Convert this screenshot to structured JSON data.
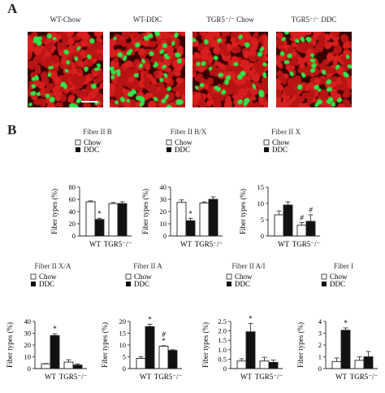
{
  "panel_a": {
    "letter": "A",
    "images": [
      {
        "label": "WT-Chow",
        "green_density": 0.55
      },
      {
        "label": "WT-DDC",
        "green_density": 0.9
      },
      {
        "label": "TGR5⁻/⁻ Chow",
        "green_density": 0.45
      },
      {
        "label": "TGR5⁻/⁻ DDC",
        "green_density": 0.5
      }
    ],
    "colors": {
      "red": "#d81e1e",
      "green": "#2ee84a",
      "background": "#3a0000"
    }
  },
  "panel_b": {
    "letter": "B"
  },
  "legend": {
    "chow": "Chow",
    "ddc": "DDC"
  },
  "colors": {
    "chow": "#ffffff",
    "ddc": "#111111",
    "stroke": "#222222"
  },
  "chart_data": [
    {
      "type": "bar",
      "title": "Fiber II B",
      "ylabel": "Fiber types (%)",
      "categories": [
        "WT",
        "TGR5⁻/⁻"
      ],
      "series": [
        {
          "name": "Chow",
          "values": [
            56,
            53
          ],
          "errors": [
            1.5,
            2
          ]
        },
        {
          "name": "DDC",
          "values": [
            27,
            53
          ],
          "errors": [
            2,
            3
          ]
        }
      ],
      "annotations": [
        {
          "category": 0,
          "series": 1,
          "text": "*"
        }
      ],
      "ylim": [
        0,
        80
      ],
      "yticks": [
        0,
        20,
        40,
        60,
        80
      ]
    },
    {
      "type": "bar",
      "title": "Fiber II B/X",
      "ylabel": "Fiber types (%)",
      "categories": [
        "WT",
        "TGR5⁻/⁻"
      ],
      "series": [
        {
          "name": "Chow",
          "values": [
            27.5,
            27
          ],
          "errors": [
            2,
            1
          ]
        },
        {
          "name": "DDC",
          "values": [
            12.5,
            30
          ],
          "errors": [
            2,
            2
          ]
        }
      ],
      "annotations": [
        {
          "category": 0,
          "series": 1,
          "text": "*"
        }
      ],
      "ylim": [
        0,
        40
      ],
      "yticks": [
        0,
        10,
        20,
        30,
        40
      ]
    },
    {
      "type": "bar",
      "title": "Fiber II X",
      "ylabel": "Fiber types (%)",
      "categories": [
        "WT",
        "TGR5⁻/⁻"
      ],
      "series": [
        {
          "name": "Chow",
          "values": [
            6.5,
            3.3
          ],
          "errors": [
            1.2,
            0.8
          ]
        },
        {
          "name": "DDC",
          "values": [
            9.5,
            4.5
          ],
          "errors": [
            1,
            2
          ]
        }
      ],
      "annotations": [
        {
          "category": 1,
          "series": 0,
          "text": "#"
        },
        {
          "category": 1,
          "series": 1,
          "text": "#"
        }
      ],
      "ylim": [
        0,
        15
      ],
      "yticks": [
        0,
        5,
        10,
        15
      ]
    },
    {
      "type": "bar",
      "title": "Fiber II X/A",
      "ylabel": "Fiber types (%)",
      "categories": [
        "WT",
        "TGR5⁻/⁻"
      ],
      "series": [
        {
          "name": "Chow",
          "values": [
            4,
            5.5
          ],
          "errors": [
            0.3,
            2
          ]
        },
        {
          "name": "DDC",
          "values": [
            28,
            3
          ],
          "errors": [
            1.5,
            1
          ]
        }
      ],
      "annotations": [
        {
          "category": 0,
          "series": 1,
          "text": "*"
        }
      ],
      "ylim": [
        0,
        40
      ],
      "yticks": [
        0,
        10,
        20,
        30,
        40
      ]
    },
    {
      "type": "bar",
      "title": "Fiber II A",
      "ylabel": "Fiber types (%)",
      "categories": [
        "WT",
        "TGR5⁻/⁻"
      ],
      "series": [
        {
          "name": "Chow",
          "values": [
            4.3,
            9.5
          ],
          "errors": [
            0.7,
            0.2
          ]
        },
        {
          "name": "DDC",
          "values": [
            17.8,
            7.7
          ],
          "errors": [
            1,
            0.3
          ]
        }
      ],
      "annotations": [
        {
          "category": 0,
          "series": 1,
          "text": "*"
        },
        {
          "category": 1,
          "series": 0,
          "text": "#\n*"
        }
      ],
      "ylim": [
        0,
        20
      ],
      "yticks": [
        0,
        5,
        10,
        15,
        20
      ]
    },
    {
      "type": "bar",
      "title": "Fiber II A/I",
      "ylabel": "Fiber types (%)",
      "categories": [
        "WT",
        "TGR5⁻/⁻"
      ],
      "series": [
        {
          "name": "Chow",
          "values": [
            0.4,
            0.4
          ],
          "errors": [
            0.12,
            0.2
          ]
        },
        {
          "name": "DDC",
          "values": [
            1.95,
            0.33
          ],
          "errors": [
            0.45,
            0.12
          ]
        }
      ],
      "annotations": [
        {
          "category": 0,
          "series": 1,
          "text": "*"
        }
      ],
      "ylim": [
        0,
        2.5
      ],
      "yticks": [
        0,
        0.5,
        1.0,
        1.5,
        2.0,
        2.5
      ]
    },
    {
      "type": "bar",
      "title": "Fiber I",
      "ylabel": "Fiber types (%)",
      "categories": [
        "WT",
        "TGR5⁻/⁻"
      ],
      "series": [
        {
          "name": "Chow",
          "values": [
            0.6,
            0.7
          ],
          "errors": [
            0.3,
            0.3
          ]
        },
        {
          "name": "DDC",
          "values": [
            3.25,
            1.0
          ],
          "errors": [
            0.2,
            0.45
          ]
        }
      ],
      "annotations": [
        {
          "category": 0,
          "series": 1,
          "text": "*"
        }
      ],
      "ylim": [
        0,
        4
      ],
      "yticks": [
        0,
        1,
        2,
        3,
        4
      ]
    }
  ]
}
